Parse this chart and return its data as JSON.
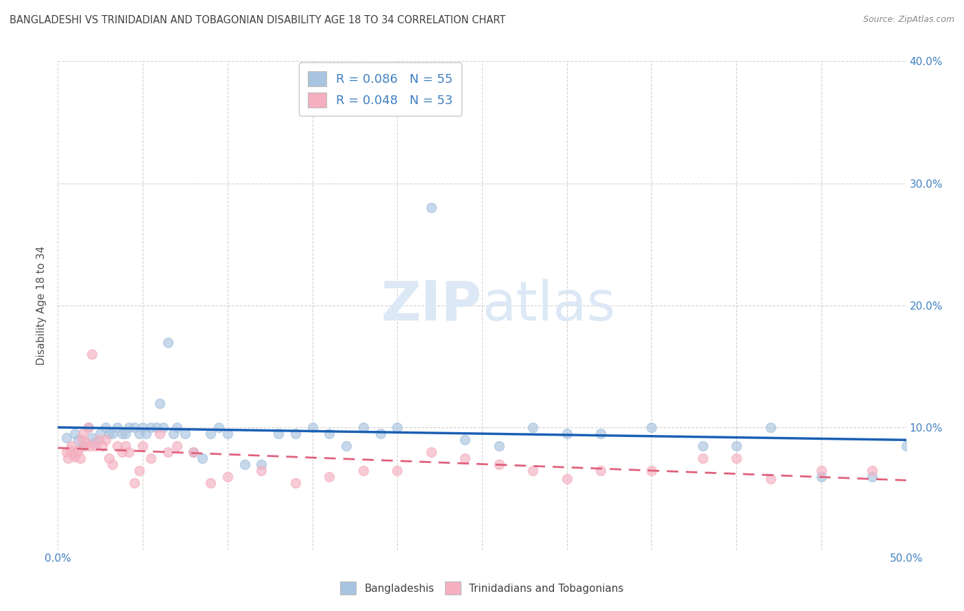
{
  "title": "BANGLADESHI VS TRINIDADIAN AND TOBAGONIAN DISABILITY AGE 18 TO 34 CORRELATION CHART",
  "source": "Source: ZipAtlas.com",
  "ylabel": "Disability Age 18 to 34",
  "xlim": [
    0.0,
    0.5
  ],
  "ylim": [
    0.0,
    0.4
  ],
  "xticks": [
    0.0,
    0.05,
    0.1,
    0.15,
    0.2,
    0.25,
    0.3,
    0.35,
    0.4,
    0.45,
    0.5
  ],
  "yticks": [
    0.0,
    0.1,
    0.2,
    0.3,
    0.4
  ],
  "xticklabels_show": [
    "0.0%",
    "",
    "",
    "",
    "",
    "",
    "",
    "",
    "",
    "",
    "50.0%"
  ],
  "yticklabels_right": [
    "",
    "10.0%",
    "20.0%",
    "30.0%",
    "40.0%"
  ],
  "legend_entries": [
    {
      "label": "R = 0.086   N = 55",
      "color": "#a8c4e0"
    },
    {
      "label": "R = 0.048   N = 53",
      "color": "#f4b8c1"
    }
  ],
  "legend_bottom": [
    {
      "label": "Bangladeshis",
      "color": "#a8c4e0"
    },
    {
      "label": "Trinidadians and Tobagonians",
      "color": "#f4b8c1"
    }
  ],
  "blue_scatter_x": [
    0.005,
    0.01,
    0.012,
    0.015,
    0.018,
    0.02,
    0.022,
    0.025,
    0.028,
    0.03,
    0.032,
    0.035,
    0.038,
    0.04,
    0.042,
    0.045,
    0.048,
    0.05,
    0.052,
    0.055,
    0.058,
    0.06,
    0.062,
    0.065,
    0.068,
    0.07,
    0.075,
    0.08,
    0.085,
    0.09,
    0.095,
    0.1,
    0.11,
    0.12,
    0.13,
    0.14,
    0.15,
    0.16,
    0.17,
    0.18,
    0.19,
    0.2,
    0.22,
    0.24,
    0.26,
    0.28,
    0.3,
    0.32,
    0.35,
    0.38,
    0.4,
    0.42,
    0.45,
    0.48,
    0.5
  ],
  "blue_scatter_y": [
    0.092,
    0.095,
    0.09,
    0.085,
    0.1,
    0.092,
    0.088,
    0.095,
    0.1,
    0.095,
    0.095,
    0.1,
    0.095,
    0.095,
    0.1,
    0.1,
    0.095,
    0.1,
    0.095,
    0.1,
    0.1,
    0.12,
    0.1,
    0.17,
    0.095,
    0.1,
    0.095,
    0.08,
    0.075,
    0.095,
    0.1,
    0.095,
    0.07,
    0.07,
    0.095,
    0.095,
    0.1,
    0.095,
    0.085,
    0.1,
    0.095,
    0.1,
    0.28,
    0.09,
    0.085,
    0.1,
    0.095,
    0.095,
    0.1,
    0.085,
    0.085,
    0.1,
    0.06,
    0.06,
    0.085
  ],
  "pink_scatter_x": [
    0.005,
    0.006,
    0.007,
    0.008,
    0.009,
    0.01,
    0.011,
    0.012,
    0.013,
    0.014,
    0.015,
    0.016,
    0.017,
    0.018,
    0.019,
    0.02,
    0.022,
    0.024,
    0.026,
    0.028,
    0.03,
    0.032,
    0.035,
    0.038,
    0.04,
    0.042,
    0.045,
    0.048,
    0.05,
    0.055,
    0.06,
    0.065,
    0.07,
    0.08,
    0.09,
    0.1,
    0.12,
    0.14,
    0.16,
    0.18,
    0.2,
    0.22,
    0.24,
    0.26,
    0.28,
    0.3,
    0.32,
    0.35,
    0.38,
    0.4,
    0.42,
    0.45,
    0.48
  ],
  "pink_scatter_y": [
    0.08,
    0.075,
    0.082,
    0.085,
    0.078,
    0.076,
    0.08,
    0.082,
    0.075,
    0.09,
    0.095,
    0.085,
    0.088,
    0.1,
    0.085,
    0.16,
    0.085,
    0.09,
    0.085,
    0.09,
    0.075,
    0.07,
    0.085,
    0.08,
    0.085,
    0.08,
    0.055,
    0.065,
    0.085,
    0.075,
    0.095,
    0.08,
    0.085,
    0.08,
    0.055,
    0.06,
    0.065,
    0.055,
    0.06,
    0.065,
    0.065,
    0.08,
    0.075,
    0.07,
    0.065,
    0.058,
    0.065,
    0.065,
    0.075,
    0.075,
    0.058,
    0.065,
    0.065
  ],
  "blue_line_color": "#1a5fb4",
  "pink_line_color": "#e0607a",
  "blue_scatter_color": "#a8c4e0",
  "pink_scatter_color": "#f4b0c0",
  "background_color": "#ffffff",
  "grid_color": "#cccccc",
  "title_color": "#404040",
  "axis_label_color": "#505050",
  "tick_color": "#4080c0",
  "watermark_color": "#dce8f5",
  "watermark_fontsize": 58
}
